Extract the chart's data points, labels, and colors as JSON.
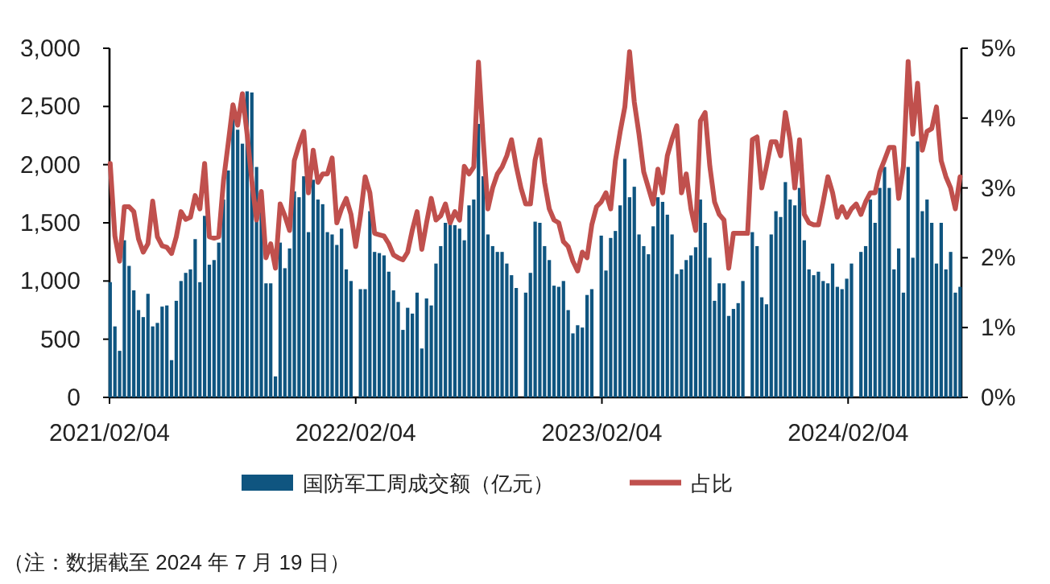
{
  "chart_data": {
    "type": "bar",
    "x": [
      "2021-02-05",
      "2021-02-12",
      "2021-02-19",
      "2021-02-26",
      "2021-03-05",
      "2021-03-12",
      "2021-03-19",
      "2021-03-26",
      "2021-04-02",
      "2021-04-09",
      "2021-04-16",
      "2021-04-23",
      "2021-04-30",
      "2021-05-07",
      "2021-05-14",
      "2021-05-21",
      "2021-05-28",
      "2021-06-04",
      "2021-06-11",
      "2021-06-18",
      "2021-06-25",
      "2021-07-02",
      "2021-07-09",
      "2021-07-16",
      "2021-07-23",
      "2021-07-30",
      "2021-08-06",
      "2021-08-13",
      "2021-08-20",
      "2021-08-27",
      "2021-09-03",
      "2021-09-10",
      "2021-09-17",
      "2021-09-24",
      "2021-10-01",
      "2021-10-08",
      "2021-10-15",
      "2021-10-22",
      "2021-10-29",
      "2021-11-05",
      "2021-11-12",
      "2021-11-19",
      "2021-11-26",
      "2021-12-03",
      "2021-12-10",
      "2021-12-17",
      "2021-12-24",
      "2021-12-31",
      "2022-01-07",
      "2022-01-14",
      "2022-01-21",
      "2022-01-28",
      "2022-02-04",
      "2022-02-11",
      "2022-02-18",
      "2022-02-25",
      "2022-03-04",
      "2022-03-11",
      "2022-03-18",
      "2022-03-25",
      "2022-04-01",
      "2022-04-08",
      "2022-04-15",
      "2022-04-22",
      "2022-04-29",
      "2022-05-06",
      "2022-05-13",
      "2022-05-20",
      "2022-05-27",
      "2022-06-03",
      "2022-06-10",
      "2022-06-17",
      "2022-06-24",
      "2022-07-01",
      "2022-07-08",
      "2022-07-15",
      "2022-07-22",
      "2022-07-29",
      "2022-08-05",
      "2022-08-12",
      "2022-08-19",
      "2022-08-26",
      "2022-09-02",
      "2022-09-09",
      "2022-09-16",
      "2022-09-23",
      "2022-09-30",
      "2022-10-07",
      "2022-10-14",
      "2022-10-21",
      "2022-10-28",
      "2022-11-04",
      "2022-11-11",
      "2022-11-18",
      "2022-11-25",
      "2022-12-02",
      "2022-12-09",
      "2022-12-16",
      "2022-12-23",
      "2022-12-30",
      "2023-01-06",
      "2023-01-13",
      "2023-01-20",
      "2023-01-27",
      "2023-02-03",
      "2023-02-10",
      "2023-02-17",
      "2023-02-24",
      "2023-03-03",
      "2023-03-10",
      "2023-03-17",
      "2023-03-24",
      "2023-03-31",
      "2023-04-07",
      "2023-04-14",
      "2023-04-21",
      "2023-04-28",
      "2023-05-05",
      "2023-05-12",
      "2023-05-19",
      "2023-05-26",
      "2023-06-02",
      "2023-06-09",
      "2023-06-16",
      "2023-06-23",
      "2023-06-30",
      "2023-07-07",
      "2023-07-14",
      "2023-07-21",
      "2023-07-28",
      "2023-08-04",
      "2023-08-11",
      "2023-08-18",
      "2023-08-25",
      "2023-09-01",
      "2023-09-08",
      "2023-09-15",
      "2023-09-22",
      "2023-09-29",
      "2023-10-06",
      "2023-10-13",
      "2023-10-20",
      "2023-10-27",
      "2023-11-03",
      "2023-11-10",
      "2023-11-17",
      "2023-11-24",
      "2023-12-01",
      "2023-12-08",
      "2023-12-15",
      "2023-12-22",
      "2023-12-29",
      "2024-01-05",
      "2024-01-12",
      "2024-01-19",
      "2024-01-26",
      "2024-02-02",
      "2024-02-09",
      "2024-02-16",
      "2024-02-23",
      "2024-03-01",
      "2024-03-08",
      "2024-03-15",
      "2024-03-22",
      "2024-03-29",
      "2024-04-05",
      "2024-04-12",
      "2024-04-19",
      "2024-04-26",
      "2024-05-03",
      "2024-05-10",
      "2024-05-17",
      "2024-05-24",
      "2024-05-31",
      "2024-06-07",
      "2024-06-14",
      "2024-06-21",
      "2024-06-28",
      "2024-07-05",
      "2024-07-12",
      "2024-07-19"
    ],
    "series": [
      {
        "name": "国防军工周成交额（亿元）",
        "color": "#0f5580",
        "values": [
          990,
          610,
          400,
          1350,
          1130,
          920,
          750,
          690,
          890,
          610,
          640,
          780,
          790,
          320,
          830,
          1000,
          1070,
          1100,
          1360,
          990,
          1560,
          1140,
          1180,
          1330,
          1700,
          1950,
          2400,
          2300,
          2180,
          2630,
          2620,
          1980,
          1600,
          980,
          980,
          180,
          1330,
          1110,
          1280,
          1770,
          1720,
          1900,
          1420,
          1870,
          1700,
          1660,
          1420,
          1400,
          1310,
          1450,
          1100,
          1000,
          null,
          930,
          930,
          1600,
          1250,
          1240,
          1220,
          1080,
          920,
          820,
          580,
          770,
          720,
          900,
          420,
          850,
          790,
          1150,
          1300,
          1500,
          1500,
          1480,
          1450,
          1350,
          1650,
          1700,
          2350,
          1900,
          1400,
          1300,
          1250,
          1250,
          1150,
          1050,
          940,
          null,
          900,
          1070,
          1510,
          1500,
          1300,
          1180,
          960,
          950,
          1000,
          750,
          550,
          620,
          600,
          880,
          930,
          null,
          1390,
          1090,
          1370,
          1430,
          1650,
          2050,
          1720,
          1810,
          1400,
          1300,
          1230,
          1470,
          1720,
          1680,
          1570,
          1400,
          1060,
          1100,
          1180,
          1220,
          1290,
          1700,
          1500,
          1200,
          830,
          980,
          980,
          700,
          760,
          810,
          1000,
          null,
          1420,
          1300,
          860,
          800,
          1400,
          1600,
          1550,
          1850,
          1700,
          1650,
          1800,
          1350,
          1100,
          1050,
          1080,
          1000,
          980,
          1150,
          950,
          930,
          1020,
          1150,
          null,
          1250,
          1300,
          1700,
          1500,
          1800,
          1980,
          1800,
          1100,
          1280,
          900,
          1980,
          1200,
          2200,
          1600,
          1700,
          1500,
          1150,
          1500,
          1100,
          1250,
          900,
          950
        ]
      },
      {
        "name": "占比",
        "type": "line",
        "axis": "y2",
        "color": "#c0504d",
        "values": [
          3.35,
          2.31,
          1.95,
          2.73,
          2.73,
          2.66,
          2.27,
          2.08,
          2.2,
          2.81,
          2.3,
          2.17,
          2.15,
          2.06,
          2.3,
          2.66,
          2.55,
          2.58,
          2.89,
          2.7,
          3.35,
          2.3,
          2.28,
          2.3,
          3.1,
          3.64,
          4.19,
          3.9,
          4.35,
          3.77,
          3.1,
          2.54,
          2.95,
          2.0,
          2.2,
          1.85,
          2.77,
          2.6,
          2.39,
          3.39,
          3.62,
          3.81,
          2.93,
          3.54,
          3.08,
          3.2,
          3.2,
          3.43,
          2.5,
          2.7,
          2.85,
          2.62,
          2.16,
          2.6,
          3.16,
          2.93,
          2.35,
          2.33,
          2.31,
          2.2,
          2.04,
          2.0,
          1.97,
          2.08,
          2.4,
          2.66,
          2.12,
          2.5,
          2.85,
          2.54,
          2.6,
          2.77,
          2.5,
          2.66,
          2.54,
          3.31,
          3.2,
          3.3,
          4.8,
          3.69,
          2.7,
          3.0,
          3.2,
          3.3,
          3.46,
          3.69,
          3.31,
          3.0,
          2.77,
          2.77,
          3.4,
          3.69,
          3.08,
          2.7,
          2.54,
          2.5,
          2.23,
          2.16,
          1.95,
          1.81,
          2.08,
          2.0,
          2.47,
          2.73,
          2.8,
          2.93,
          2.7,
          3.39,
          3.8,
          4.16,
          4.95,
          4.23,
          3.77,
          3.23,
          3.0,
          2.77,
          3.27,
          2.93,
          3.46,
          3.7,
          3.89,
          2.93,
          3.2,
          2.7,
          2.39,
          3.96,
          4.08,
          3.31,
          2.8,
          2.62,
          2.54,
          1.85,
          2.35,
          2.35,
          2.35,
          2.35,
          3.69,
          3.73,
          3.0,
          3.31,
          3.66,
          3.66,
          3.46,
          4.08,
          3.69,
          3.0,
          3.69,
          2.62,
          2.5,
          2.47,
          2.47,
          2.8,
          3.16,
          2.93,
          2.58,
          2.73,
          2.58,
          2.7,
          2.77,
          2.62,
          2.8,
          2.93,
          2.93,
          3.23,
          3.4,
          3.58,
          3.58,
          2.85,
          3.31,
          4.81,
          3.77,
          4.5,
          3.54,
          3.81,
          3.85,
          4.16,
          3.39,
          3.16,
          3.0,
          2.7,
          3.16
        ]
      }
    ],
    "xlim": [
      "2021-02-04",
      "2024-07-21"
    ],
    "xticks": [
      {
        "value": "2021-02-04",
        "label": "2021/02/04"
      },
      {
        "value": "2022-02-04",
        "label": "2022/02/04"
      },
      {
        "value": "2023-02-04",
        "label": "2023/02/04"
      },
      {
        "value": "2024-02-04",
        "label": "2024/02/04"
      }
    ],
    "ylim": [
      0,
      3000
    ],
    "yticks": [
      0,
      500,
      {
        "value": 1000,
        "label": "1,000"
      },
      {
        "value": 1500,
        "label": "1,500"
      },
      {
        "value": 2000,
        "label": "2,000"
      },
      {
        "value": 2500,
        "label": "2,500"
      },
      {
        "value": 3000,
        "label": "3,000"
      }
    ],
    "y2lim": [
      0,
      5
    ],
    "y2ticks": [
      {
        "value": 0,
        "label": "0%"
      },
      {
        "value": 1,
        "label": "1%"
      },
      {
        "value": 2,
        "label": "2%"
      },
      {
        "value": 3,
        "label": "3%"
      },
      {
        "value": 4,
        "label": "4%"
      },
      {
        "value": 5,
        "label": "5%"
      }
    ],
    "legend": "bottom",
    "annotations": [
      "（注：数据截至 2024 年 7 月 19 日）"
    ]
  }
}
